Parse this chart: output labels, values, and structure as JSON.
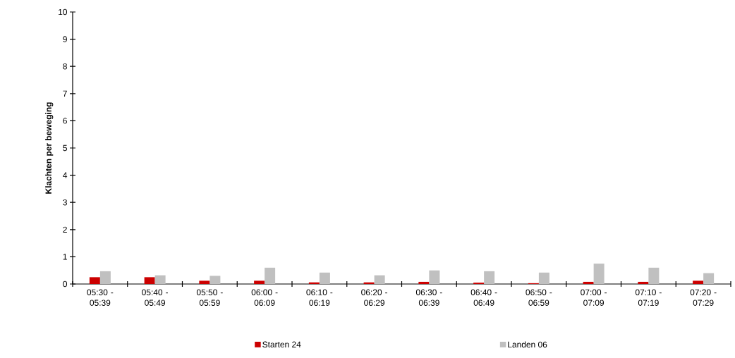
{
  "chart_data": {
    "type": "bar",
    "ylabel": "Klachten per beweging",
    "categories": [
      "05:30 - 05:39",
      "05:40 - 05:49",
      "05:50 - 05:59",
      "06:00 - 06:09",
      "06:10 - 06:19",
      "06:20 - 06:29",
      "06:30 - 06:39",
      "06:40 - 06:49",
      "06:50 - 06:59",
      "07:00 - 07:09",
      "07:10 - 07:19",
      "07:20 - 07:29"
    ],
    "series": [
      {
        "name": "Starten 24",
        "color": "#cc0000",
        "values": [
          0.25,
          0.25,
          0.12,
          0.12,
          0.06,
          0.06,
          0.08,
          0.05,
          0.03,
          0.08,
          0.08,
          0.12
        ]
      },
      {
        "name": "Landen 06",
        "color": "#c0c0c0",
        "values": [
          0.47,
          0.32,
          0.3,
          0.6,
          0.42,
          0.32,
          0.5,
          0.47,
          0.42,
          0.75,
          0.6,
          0.4
        ]
      }
    ],
    "ylim": [
      0,
      10
    ],
    "yticks": [
      0,
      1,
      2,
      3,
      4,
      5,
      6,
      7,
      8,
      9,
      10
    ],
    "grid": false,
    "legend": "bottom"
  }
}
